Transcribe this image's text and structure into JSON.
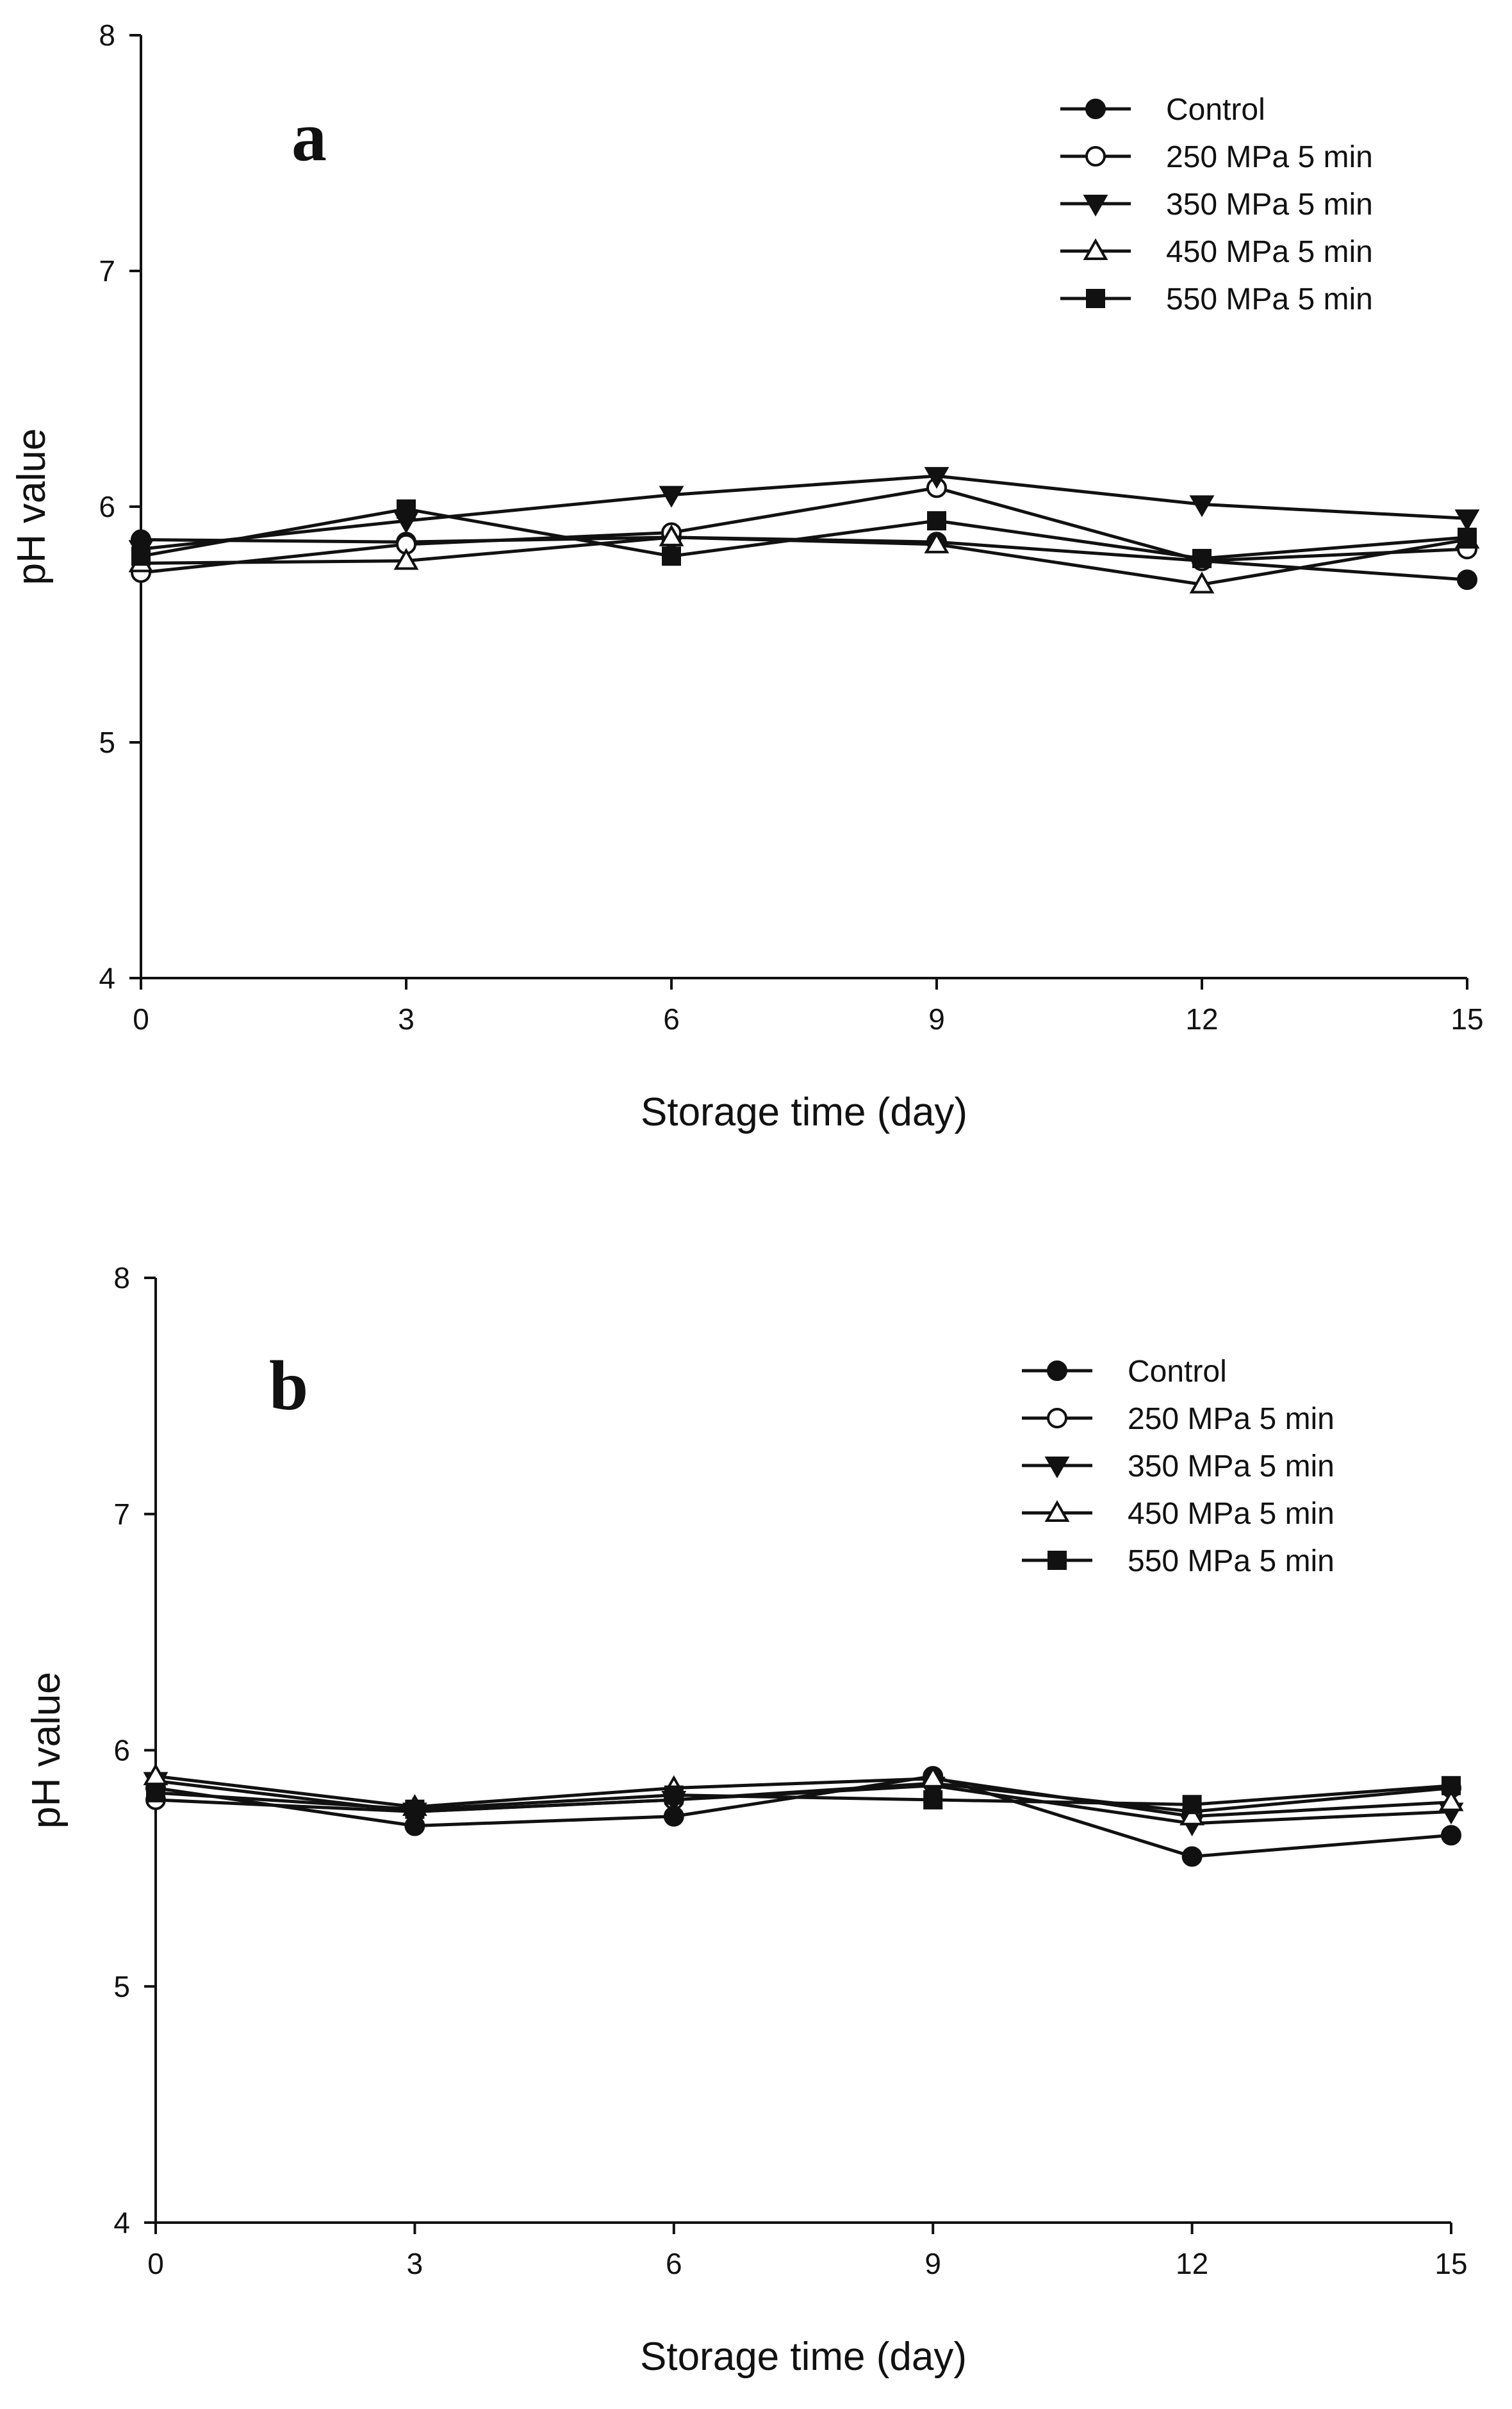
{
  "chart_data": [
    {
      "panel": "a",
      "type": "line",
      "xlabel": "Storage time (day)",
      "ylabel": "pH value",
      "x": [
        0,
        3,
        6,
        9,
        12,
        15
      ],
      "xticks": [
        0,
        3,
        6,
        9,
        12,
        15
      ],
      "xlim": [
        0,
        15
      ],
      "yticks": [
        4,
        5,
        6,
        7,
        8
      ],
      "ylim": [
        4,
        8
      ],
      "legend_position": "top-right",
      "series": [
        {
          "name": "Control",
          "marker": "circle-filled",
          "values": [
            5.86,
            5.85,
            5.87,
            5.85,
            5.77,
            5.69
          ]
        },
        {
          "name": "250 MPa 5 min",
          "marker": "circle-open",
          "values": [
            5.72,
            5.84,
            5.89,
            6.08,
            5.77,
            5.82
          ]
        },
        {
          "name": "350 MPa 5 min",
          "marker": "triangle-down-filled",
          "values": [
            5.82,
            5.94,
            6.05,
            6.13,
            6.01,
            5.95
          ]
        },
        {
          "name": "450 MPa 5 min",
          "marker": "triangle-up-open",
          "values": [
            5.76,
            5.77,
            5.87,
            5.84,
            5.67,
            5.86
          ]
        },
        {
          "name": "550 MPa 5 min",
          "marker": "square-filled",
          "values": [
            5.79,
            5.99,
            5.79,
            5.94,
            5.78,
            5.87
          ]
        }
      ]
    },
    {
      "panel": "b",
      "type": "line",
      "xlabel": "Storage time (day)",
      "ylabel": "pH value",
      "x": [
        0,
        3,
        6,
        9,
        12,
        15
      ],
      "xticks": [
        0,
        3,
        6,
        9,
        12,
        15
      ],
      "xlim": [
        0,
        15
      ],
      "yticks": [
        4,
        5,
        6,
        7,
        8
      ],
      "ylim": [
        4,
        8
      ],
      "legend_position": "top-right",
      "series": [
        {
          "name": "Control",
          "marker": "circle-filled",
          "values": [
            5.84,
            5.68,
            5.72,
            5.89,
            5.55,
            5.64
          ]
        },
        {
          "name": "250 MPa 5 min",
          "marker": "circle-open",
          "values": [
            5.79,
            5.74,
            5.79,
            5.86,
            5.74,
            5.84
          ]
        },
        {
          "name": "350 MPa 5 min",
          "marker": "triangle-down-filled",
          "values": [
            5.87,
            5.74,
            5.79,
            5.85,
            5.69,
            5.74
          ]
        },
        {
          "name": "450 MPa 5 min",
          "marker": "triangle-up-open",
          "values": [
            5.89,
            5.76,
            5.84,
            5.88,
            5.72,
            5.78
          ]
        },
        {
          "name": "550 MPa 5 min",
          "marker": "square-filled",
          "values": [
            5.82,
            5.75,
            5.81,
            5.79,
            5.77,
            5.85
          ]
        }
      ]
    }
  ]
}
